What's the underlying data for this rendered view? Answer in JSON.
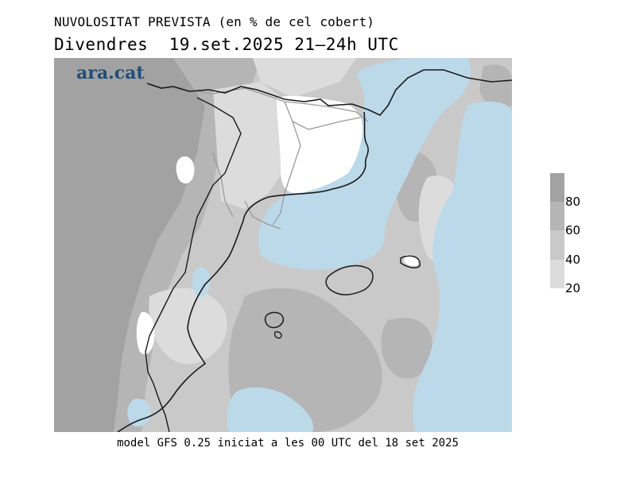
{
  "title": "NUVOLOSITAT PREVISTA (en % de cel cobert)",
  "subtitle": "Divendres  19.set.2025 21–24h UTC",
  "brand": "ara.cat",
  "footer": "model GFS 0.25 iniciat a les 00 UTC del 18 set 2025",
  "legend": {
    "labels": [
      "80",
      "60",
      "40",
      "20"
    ],
    "classes": [
      {
        "range": "80-100",
        "color": "#a2a2a2"
      },
      {
        "range": "60-80",
        "color": "#b5b5b5"
      },
      {
        "range": "40-60",
        "color": "#c9c9c9"
      },
      {
        "range": "20-40",
        "color": "#dcdcdc"
      },
      {
        "range": "0-20",
        "color": "#ffffff"
      }
    ]
  },
  "colors": {
    "sea": "#bcd9ea",
    "coast": "#1a1a1a",
    "borders": "#9a9a9a",
    "brand": "#1f4e7a"
  }
}
